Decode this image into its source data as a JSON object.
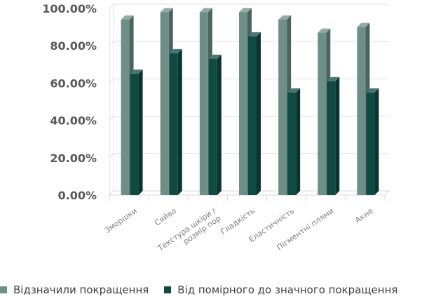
{
  "chart_data": {
    "type": "bar",
    "categories": [
      "Зморшки",
      "Сяйво",
      "Текстура шкіри / розмір пор",
      "Гладкість",
      "Еластичність",
      "Пігментні плями",
      "Акне"
    ],
    "series": [
      {
        "name": "Відзначили покращення",
        "color": "#6e8e88",
        "values": [
          94,
          98,
          98,
          98,
          94,
          87,
          90
        ]
      },
      {
        "name": "Від помірного до значного покращення",
        "color": "#0f4a43",
        "values": [
          65,
          76,
          73,
          85,
          55,
          61,
          55
        ]
      }
    ],
    "yticks": [
      "0.00%",
      "20.00%",
      "40.00%",
      "60.00%",
      "80.00%",
      "100.00%"
    ],
    "ylim": [
      0,
      100
    ],
    "grid": true,
    "legend_position": "bottom",
    "title": "",
    "xlabel": "",
    "ylabel": ""
  }
}
